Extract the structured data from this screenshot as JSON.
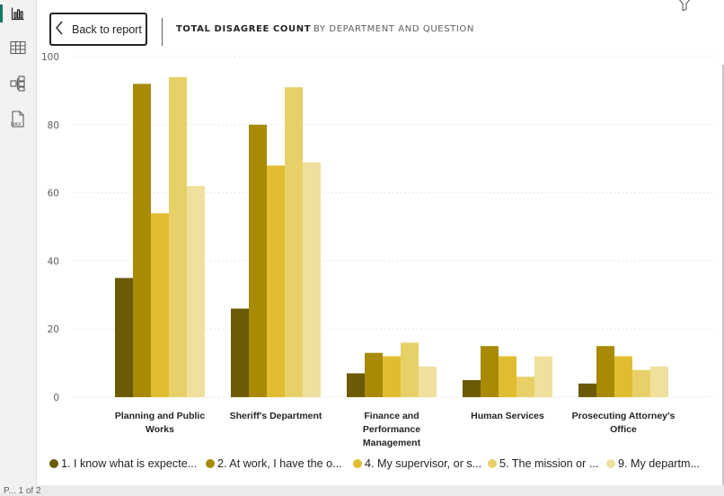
{
  "nav": {
    "back_label": "Back to report"
  },
  "header": {
    "title": "TOTAL DISAGREE COUNT",
    "subtitle": "BY DEPARTMENT AND QUESTION"
  },
  "rail": {
    "icons": [
      "report-view-icon",
      "table-view-icon",
      "model-view-icon",
      "dax-query-icon"
    ],
    "accent": "#117865"
  },
  "footer": {
    "page_label": "P... 1 of 2"
  },
  "chart_data": {
    "type": "bar",
    "title": "TOTAL DISAGREE COUNT",
    "subtitle": "BY DEPARTMENT AND QUESTION",
    "xlabel": "",
    "ylabel": "",
    "ylim": [
      0,
      100
    ],
    "yticks": [
      0,
      20,
      40,
      60,
      80,
      100
    ],
    "grid": true,
    "legend_position": "bottom",
    "categories": [
      [
        "Planning and Public",
        "Works"
      ],
      [
        "Sheriff's Department"
      ],
      [
        "Finance and",
        "Performance",
        "Management"
      ],
      [
        "Human Services"
      ],
      [
        "Prosecuting Attorney's",
        "Office"
      ]
    ],
    "series": [
      {
        "name": "1. I know what is expecte...",
        "color": "#6b5a06",
        "values": [
          35,
          26,
          7,
          5,
          4
        ]
      },
      {
        "name": "2. At work, I have the o...",
        "color": "#a88a04",
        "values": [
          92,
          80,
          13,
          15,
          15
        ]
      },
      {
        "name": "4. My supervisor, or s...",
        "color": "#e0bd30",
        "values": [
          54,
          68,
          12,
          12,
          12
        ]
      },
      {
        "name": "5. The mission or ...",
        "color": "#e8d068",
        "values": [
          94,
          91,
          16,
          6,
          8
        ]
      },
      {
        "name": "9. My departm...",
        "color": "#f0e09e",
        "values": [
          62,
          69,
          9,
          12,
          9
        ]
      }
    ]
  }
}
